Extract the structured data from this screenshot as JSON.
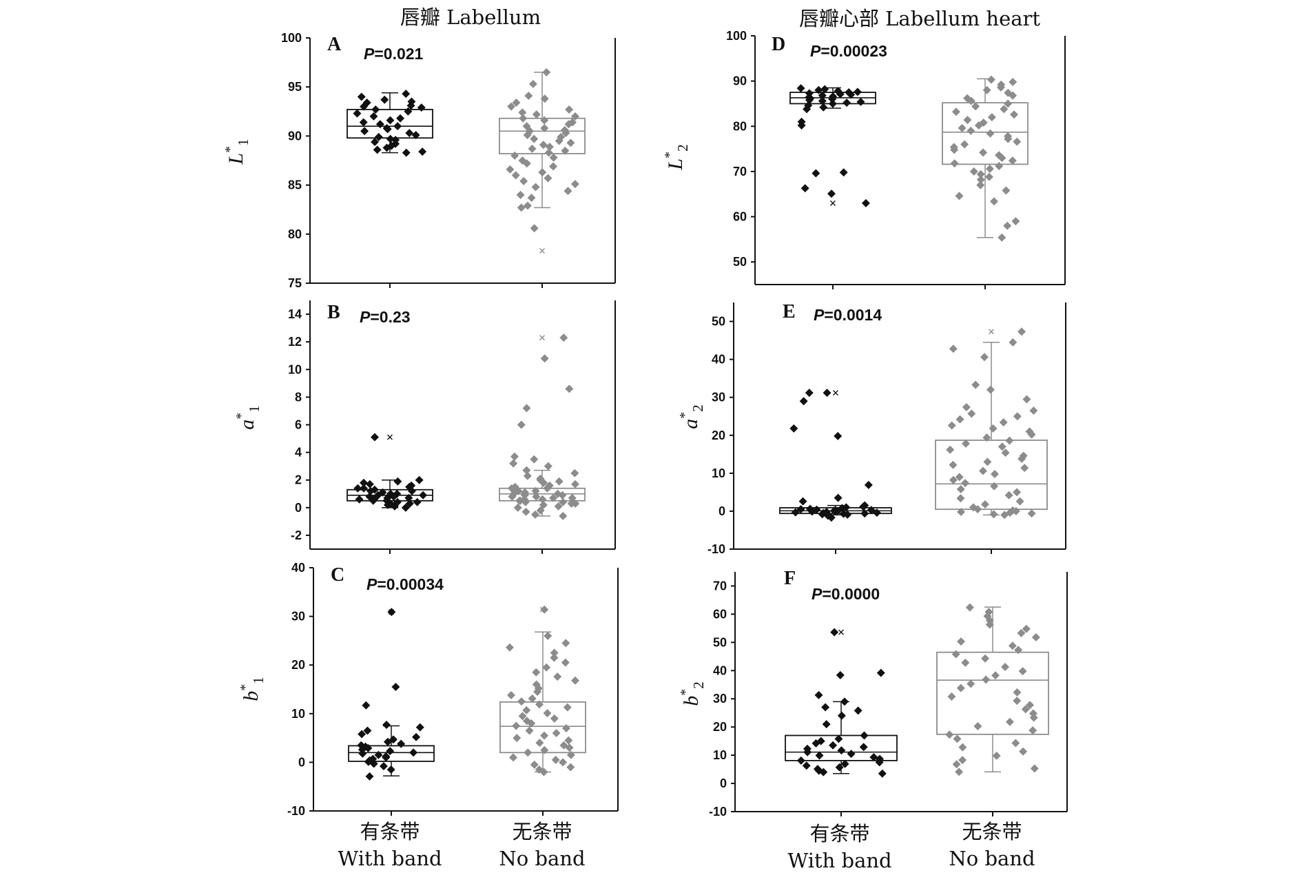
{
  "column_titles": [
    "唇瓣 Labellum",
    "唇瓣心部 Labellum heart"
  ],
  "categories": [
    {
      "zh": "有条带",
      "en": "With band"
    },
    {
      "zh": "无条带",
      "en": "No band"
    }
  ],
  "colors": {
    "with_band": "#111111",
    "no_band": "#8c8c8c",
    "axis": "#111111"
  },
  "marker": "diamond",
  "chart_data": [
    {
      "type": "box",
      "panel": "A",
      "p_prefix": "P",
      "p_value": "=0.021",
      "ylabel": {
        "base": "L",
        "sup": "*",
        "sub": "1"
      },
      "ylim": [
        75,
        100
      ],
      "yticks": [
        75,
        80,
        85,
        90,
        95,
        100
      ],
      "categories": [
        "With band",
        "No band"
      ],
      "boxes": [
        {
          "min": 88.3,
          "q1": 89.8,
          "median": 91.0,
          "q3": 92.7,
          "max": 94.4
        },
        {
          "min": 82.7,
          "q1": 88.2,
          "median": 90.5,
          "q3": 91.8,
          "max": 96.5
        }
      ],
      "points": [
        [
          94.3,
          94.0,
          93.7,
          93.5,
          93.4,
          93.1,
          93.0,
          92.9,
          92.7,
          92.5,
          92.3,
          92.0,
          91.8,
          91.6,
          91.4,
          91.2,
          91.0,
          90.8,
          90.7,
          90.5,
          90.3,
          90.1,
          89.9,
          89.7,
          89.6,
          89.4,
          89.2,
          89.0,
          88.8,
          88.6,
          88.4,
          88.3
        ],
        [
          96.5,
          95.3,
          94.1,
          93.8,
          93.4,
          93.0,
          92.7,
          92.4,
          92.2,
          92.0,
          91.8,
          91.6,
          91.4,
          91.2,
          91.0,
          90.8,
          90.6,
          90.5,
          90.3,
          90.1,
          89.9,
          89.7,
          89.5,
          89.3,
          89.1,
          88.9,
          88.7,
          88.5,
          88.3,
          88.0,
          87.8,
          87.5,
          87.2,
          86.9,
          86.6,
          86.3,
          86.0,
          85.7,
          85.4,
          85.1,
          84.8,
          84.4,
          84.0,
          83.7,
          82.9,
          82.7,
          80.6
        ]
      ],
      "outliers": [
        [],
        [
          78.3
        ]
      ]
    },
    {
      "type": "box",
      "panel": "B",
      "p_prefix": "P",
      "p_value": "=0.23",
      "ylabel": {
        "base": "a",
        "sup": "*",
        "sub": "1"
      },
      "ylim": [
        -3,
        15
      ],
      "yticks": [
        -2,
        0,
        2,
        4,
        6,
        8,
        10,
        12,
        14
      ],
      "categories": [
        "With band",
        "No band"
      ],
      "boxes": [
        {
          "min": 0.0,
          "q1": 0.5,
          "median": 0.9,
          "q3": 1.3,
          "max": 2.0
        },
        {
          "min": -0.6,
          "q1": 0.5,
          "median": 1.0,
          "q3": 1.4,
          "max": 2.7
        }
      ],
      "points": [
        [
          5.1,
          2.0,
          1.9,
          1.8,
          1.7,
          1.6,
          1.5,
          1.4,
          1.4,
          1.3,
          1.2,
          1.2,
          1.1,
          1.0,
          1.0,
          0.9,
          0.9,
          0.8,
          0.8,
          0.7,
          0.7,
          0.6,
          0.6,
          0.5,
          0.5,
          0.4,
          0.4,
          0.3,
          0.3,
          0.2,
          0.1,
          0.0
        ],
        [
          12.3,
          10.8,
          8.6,
          7.2,
          6.0,
          3.7,
          3.5,
          3.2,
          3.0,
          2.7,
          2.5,
          2.3,
          2.1,
          2.0,
          1.9,
          1.8,
          1.7,
          1.6,
          1.5,
          1.4,
          1.4,
          1.3,
          1.2,
          1.2,
          1.1,
          1.0,
          1.0,
          0.9,
          0.9,
          0.8,
          0.8,
          0.7,
          0.7,
          0.6,
          0.6,
          0.5,
          0.5,
          0.4,
          0.4,
          0.3,
          0.3,
          0.2,
          0.1,
          0.0,
          -0.2,
          -0.3,
          -0.5,
          -0.6
        ]
      ],
      "outliers": [
        [
          5.1
        ],
        [
          12.3
        ]
      ]
    },
    {
      "type": "box",
      "panel": "C",
      "p_prefix": "P",
      "p_value": "=0.00034",
      "ylabel": {
        "base": "b",
        "sup": "*",
        "sub": "1"
      },
      "ylim": [
        -10,
        40
      ],
      "yticks": [
        -10,
        0,
        10,
        20,
        30,
        40
      ],
      "categories": [
        "With band",
        "No band"
      ],
      "boxes": [
        {
          "min": -2.8,
          "q1": 0.2,
          "median": 2.0,
          "q3": 3.4,
          "max": 7.5
        },
        {
          "min": -2.0,
          "q1": 2.0,
          "median": 7.4,
          "q3": 12.4,
          "max": 26.8
        }
      ],
      "points": [
        [
          30.9,
          15.5,
          11.7,
          7.7,
          7.2,
          6.5,
          5.8,
          5.2,
          4.7,
          4.2,
          3.8,
          3.5,
          3.2,
          2.9,
          2.6,
          2.3,
          2.0,
          1.8,
          1.5,
          1.2,
          1.0,
          0.7,
          0.4,
          0.1,
          -0.3,
          -0.8,
          -1.5,
          -2.9
        ],
        [
          31.4,
          26.0,
          24.5,
          23.6,
          22.5,
          21.5,
          20.5,
          19.5,
          18.5,
          17.6,
          16.8,
          16.0,
          15.2,
          14.5,
          13.8,
          13.1,
          12.5,
          11.9,
          11.3,
          10.7,
          10.1,
          9.5,
          9.0,
          8.5,
          8.0,
          7.5,
          7.0,
          6.5,
          6.0,
          5.5,
          5.0,
          4.5,
          4.0,
          3.5,
          3.0,
          2.5,
          2.0,
          1.5,
          1.0,
          0.5,
          0.0,
          -0.5,
          -1.0,
          -1.5,
          -2.0
        ]
      ],
      "outliers": [
        [
          30.9
        ],
        [
          31.4
        ]
      ]
    },
    {
      "type": "box",
      "panel": "D",
      "p_prefix": "P",
      "p_value": "=0.00023",
      "ylabel": {
        "base": "L",
        "sup": "*",
        "sub": "2"
      },
      "ylim": [
        45,
        100
      ],
      "yticks": [
        50,
        60,
        70,
        80,
        90,
        100
      ],
      "categories": [
        "With band",
        "No band"
      ],
      "boxes": [
        {
          "min": 84.0,
          "q1": 85.0,
          "median": 86.3,
          "q3": 87.5,
          "max": 88.5
        },
        {
          "min": 55.4,
          "q1": 71.6,
          "median": 78.7,
          "q3": 85.2,
          "max": 90.5
        }
      ],
      "points": [
        [
          88.4,
          88.2,
          88.0,
          87.8,
          87.6,
          87.5,
          87.3,
          87.1,
          87.0,
          86.8,
          86.6,
          86.4,
          86.2,
          86.0,
          85.8,
          85.6,
          85.4,
          85.2,
          85.0,
          84.6,
          84.2,
          83.8,
          81.0,
          80.2,
          69.8,
          69.6,
          66.3,
          65.1,
          63.0
        ],
        [
          90.3,
          89.8,
          89.2,
          88.6,
          88.0,
          87.4,
          86.8,
          86.2,
          85.6,
          85.0,
          84.4,
          83.8,
          83.2,
          82.6,
          82.0,
          81.4,
          80.8,
          80.2,
          79.6,
          79.0,
          78.4,
          77.8,
          77.2,
          76.6,
          76.0,
          75.4,
          74.8,
          74.2,
          73.6,
          73.0,
          72.4,
          71.8,
          71.2,
          70.6,
          70.0,
          69.4,
          68.8,
          68.2,
          67.0,
          65.8,
          64.6,
          63.4,
          59.0,
          58.0,
          55.4
        ]
      ],
      "outliers": [
        [
          63.0
        ],
        []
      ]
    },
    {
      "type": "box",
      "panel": "E",
      "p_prefix": "P",
      "p_value": "=0.0014",
      "ylabel": {
        "base": "a",
        "sup": "*",
        "sub": "2"
      },
      "ylim": [
        -10,
        55
      ],
      "yticks": [
        -10,
        0,
        10,
        20,
        30,
        40,
        50
      ],
      "categories": [
        "With band",
        "No band"
      ],
      "boxes": [
        {
          "min": -1.0,
          "q1": -0.6,
          "median": 0.1,
          "q3": 0.9,
          "max": 1.5
        },
        {
          "min": -1.0,
          "q1": 0.5,
          "median": 7.2,
          "q3": 18.7,
          "max": 44.5
        }
      ],
      "points": [
        [
          31.2,
          31.2,
          29.0,
          21.8,
          19.8,
          6.9,
          3.5,
          2.6,
          1.5,
          1.2,
          1.0,
          0.8,
          0.6,
          0.5,
          0.4,
          0.3,
          0.2,
          0.1,
          0.0,
          -0.1,
          -0.2,
          -0.3,
          -0.4,
          -0.5,
          -0.6,
          -0.7,
          -0.8,
          -0.9,
          -1.2,
          -1.7
        ],
        [
          47.3,
          44.5,
          42.8,
          40.6,
          33.3,
          32.0,
          29.5,
          27.4,
          26.5,
          25.7,
          25.0,
          24.2,
          23.4,
          22.6,
          21.8,
          21.0,
          20.2,
          19.4,
          18.6,
          17.8,
          17.0,
          16.2,
          15.4,
          14.6,
          13.8,
          13.0,
          12.2,
          11.4,
          10.6,
          9.8,
          9.0,
          8.2,
          7.4,
          6.6,
          5.8,
          5.0,
          4.2,
          3.4,
          2.6,
          1.8,
          1.0,
          0.5,
          0.2,
          0.0,
          -0.2,
          -0.4,
          -0.6,
          -0.8,
          -1.0
        ]
      ],
      "outliers": [
        [
          31.2
        ],
        [
          47.3
        ]
      ]
    },
    {
      "type": "box",
      "panel": "F",
      "p_prefix": "P",
      "p_value": "=0.0000",
      "ylabel": {
        "base": "b",
        "sup": "*",
        "sub": "2"
      },
      "ylim": [
        -10,
        75
      ],
      "yticks": [
        -10,
        0,
        10,
        20,
        30,
        40,
        50,
        60,
        70
      ],
      "categories": [
        "With band",
        "No band"
      ],
      "boxes": [
        {
          "min": 3.5,
          "q1": 8.1,
          "median": 11.1,
          "q3": 17.0,
          "max": 29.0
        },
        {
          "min": 4.1,
          "q1": 17.4,
          "median": 36.6,
          "q3": 46.5,
          "max": 62.5
        }
      ],
      "points": [
        [
          53.6,
          39.2,
          38.4,
          31.3,
          29.0,
          27.0,
          25.8,
          24.0,
          21.0,
          17.0,
          15.8,
          15.0,
          14.2,
          13.5,
          12.9,
          12.3,
          11.7,
          11.1,
          10.5,
          9.9,
          9.3,
          8.7,
          8.1,
          7.5,
          6.9,
          6.3,
          5.7,
          5.1,
          4.5,
          4.0,
          3.5
        ],
        [
          62.4,
          60.8,
          59.3,
          57.8,
          56.3,
          54.8,
          53.3,
          51.8,
          50.3,
          48.8,
          47.3,
          45.8,
          44.3,
          42.8,
          41.3,
          39.8,
          38.3,
          36.8,
          35.3,
          33.8,
          32.3,
          30.8,
          29.3,
          27.8,
          26.3,
          24.8,
          23.3,
          21.8,
          20.3,
          18.8,
          17.3,
          15.8,
          14.3,
          12.8,
          11.3,
          9.8,
          8.3,
          6.8,
          5.3,
          4.1
        ]
      ],
      "outliers": [
        [
          53.6
        ],
        []
      ]
    }
  ]
}
